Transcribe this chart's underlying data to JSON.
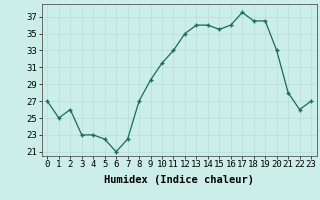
{
  "x": [
    0,
    1,
    2,
    3,
    4,
    5,
    6,
    7,
    8,
    9,
    10,
    11,
    12,
    13,
    14,
    15,
    16,
    17,
    18,
    19,
    20,
    21,
    22,
    23
  ],
  "y": [
    27,
    25,
    26,
    23,
    23,
    22.5,
    21,
    22.5,
    27,
    29.5,
    31.5,
    33,
    35,
    36,
    36,
    35.5,
    36,
    37.5,
    36.5,
    36.5,
    33,
    28,
    26,
    27
  ],
  "xlabel": "Humidex (Indice chaleur)",
  "yticks": [
    21,
    23,
    25,
    27,
    29,
    31,
    33,
    35,
    37
  ],
  "xlim": [
    -0.5,
    23.5
  ],
  "ylim": [
    20.5,
    38.5
  ],
  "line_color": "#1a6b5a",
  "bg_color": "#cceee8",
  "grid_color": "#b8ddd8",
  "xlabel_fontsize": 7.5,
  "tick_fontsize": 6.5
}
